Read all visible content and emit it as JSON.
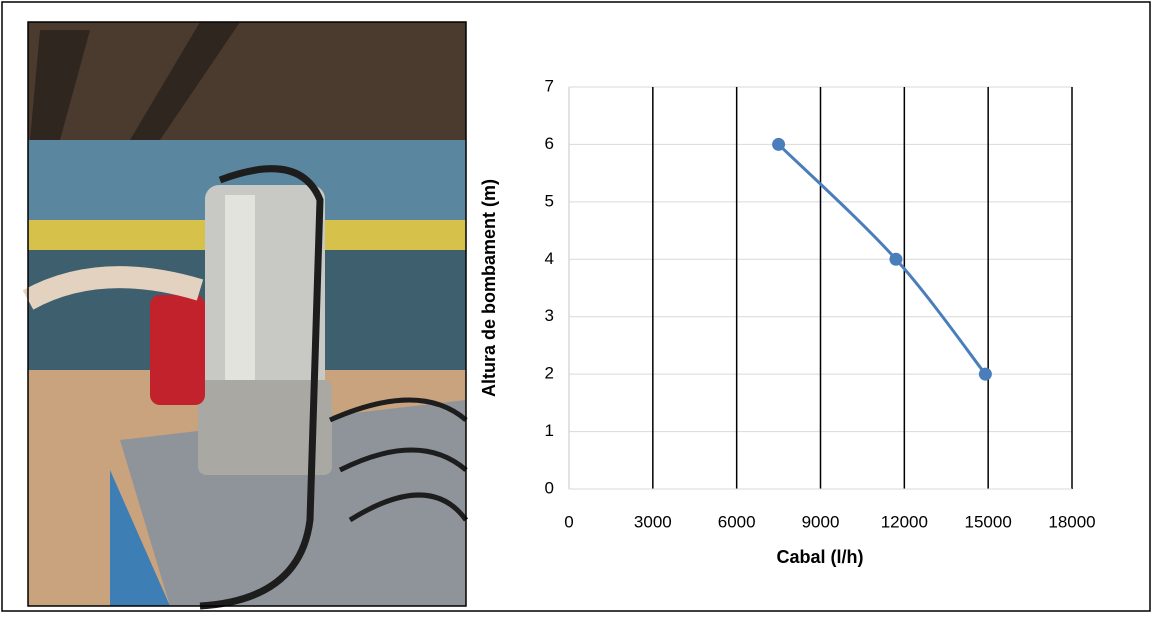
{
  "chart_data": {
    "type": "line",
    "xlabel": "Cabal (l/h)",
    "ylabel": "Altura de bombament (m)",
    "x": [
      7500,
      11700,
      14900
    ],
    "series": [
      {
        "color": "#4a7ebb",
        "values": [
          6,
          4,
          2
        ]
      }
    ],
    "xlim": [
      0,
      18000
    ],
    "xticks": [
      0,
      3000,
      6000,
      9000,
      12000,
      15000,
      18000
    ],
    "ylim": [
      0,
      7
    ],
    "yticks": [
      0,
      1,
      2,
      3,
      4,
      5,
      6,
      7
    ],
    "grid": true,
    "smooth": true,
    "markers": true
  }
}
